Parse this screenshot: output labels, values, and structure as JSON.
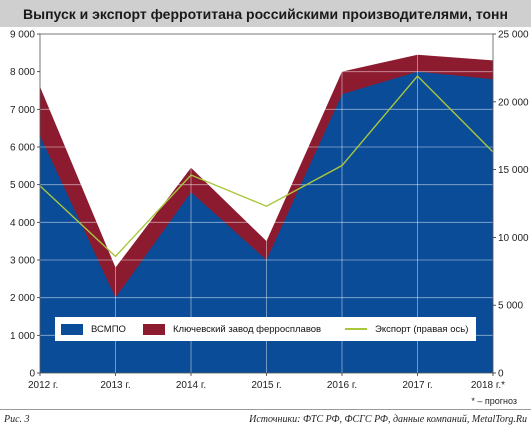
{
  "title": "Выпуск и экспорт ферротитана российскими производителями, тонн",
  "figure_label": "Рис. 3",
  "source": "Источники: ФТС РФ, ФСГС РФ, данные компаний, MetalTorg.Ru",
  "footnote": "* – прогноз",
  "colors": {
    "vsmpo": "#0a4c97",
    "klyuchevsky": "#8c1b30",
    "export": "#a9c73d",
    "title_bg": "#cfcfcf",
    "grid": "#ffffff"
  },
  "chart_data": {
    "type": "area",
    "stacked": true,
    "categories": [
      "2012 г.",
      "2013 г.",
      "2014 г.",
      "2015 г.",
      "2016 г.",
      "2017 г.",
      "2018 г.*"
    ],
    "series": [
      {
        "name": "ВСМПО",
        "axis": "left",
        "values": [
          6300,
          2000,
          4800,
          3000,
          7400,
          8000,
          7800
        ]
      },
      {
        "name": "Ключевский завод ферросплавов",
        "axis": "left",
        "values": [
          1300,
          800,
          650,
          500,
          600,
          450,
          500
        ]
      },
      {
        "name": "Экспорт (правая ось)",
        "axis": "right",
        "type": "line",
        "values": [
          13800,
          8600,
          14600,
          12300,
          15300,
          21900,
          16300
        ]
      }
    ],
    "y_left": {
      "min": 0,
      "max": 9000,
      "ticks": [
        "0",
        "1 000",
        "2 000",
        "3 000",
        "4 000",
        "5 000",
        "6 000",
        "7 000",
        "8 000",
        "9 000"
      ]
    },
    "y_right": {
      "min": 0,
      "max": 25000,
      "ticks": [
        "0",
        "5 000",
        "10 000",
        "15 000",
        "20 000",
        "25 000"
      ]
    },
    "legend": "bottom-inside",
    "grid": true
  }
}
